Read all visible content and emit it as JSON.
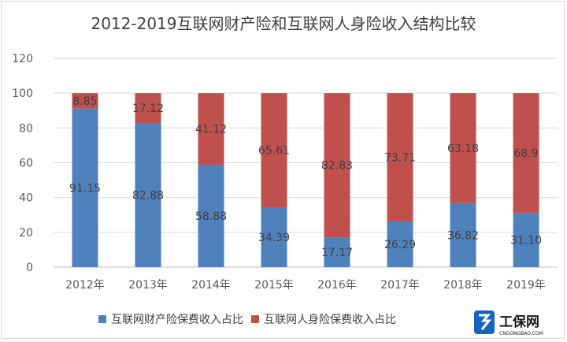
{
  "chart_data": {
    "type": "bar",
    "stacked": true,
    "title": "2012-2019互联网财产险和互联网人身险收入结构比较",
    "categories": [
      "2012年",
      "2013年",
      "2014年",
      "2015年",
      "2016年",
      "2017年",
      "2018年",
      "2019年"
    ],
    "series": [
      {
        "name": "互联网财产险保费收入占比",
        "color": "#4f81bd",
        "values": [
          91.15,
          82.88,
          58.88,
          34.39,
          17.17,
          26.29,
          36.82,
          31.1
        ],
        "labels": [
          "91.15",
          "82.88",
          "58.88",
          "34.39",
          "17.17",
          "26.29",
          "36.82",
          "31.10"
        ]
      },
      {
        "name": "互联网人身险保费收入占比",
        "color": "#c0504d",
        "values": [
          8.85,
          17.12,
          41.12,
          65.61,
          82.83,
          73.71,
          63.18,
          68.9
        ],
        "labels": [
          "8.85",
          "17.12",
          "41.12",
          "65.61",
          "82.83",
          "73.71",
          "63.18",
          "68.9"
        ]
      }
    ],
    "ylim": [
      0,
      120
    ],
    "yticks": [
      0,
      20,
      40,
      60,
      80,
      100,
      120
    ],
    "grid": true,
    "legend_position": "bottom"
  },
  "watermark": {
    "brand": "工保网",
    "domain": "CNGONGBAO.COM",
    "accent": "#1565c0"
  }
}
